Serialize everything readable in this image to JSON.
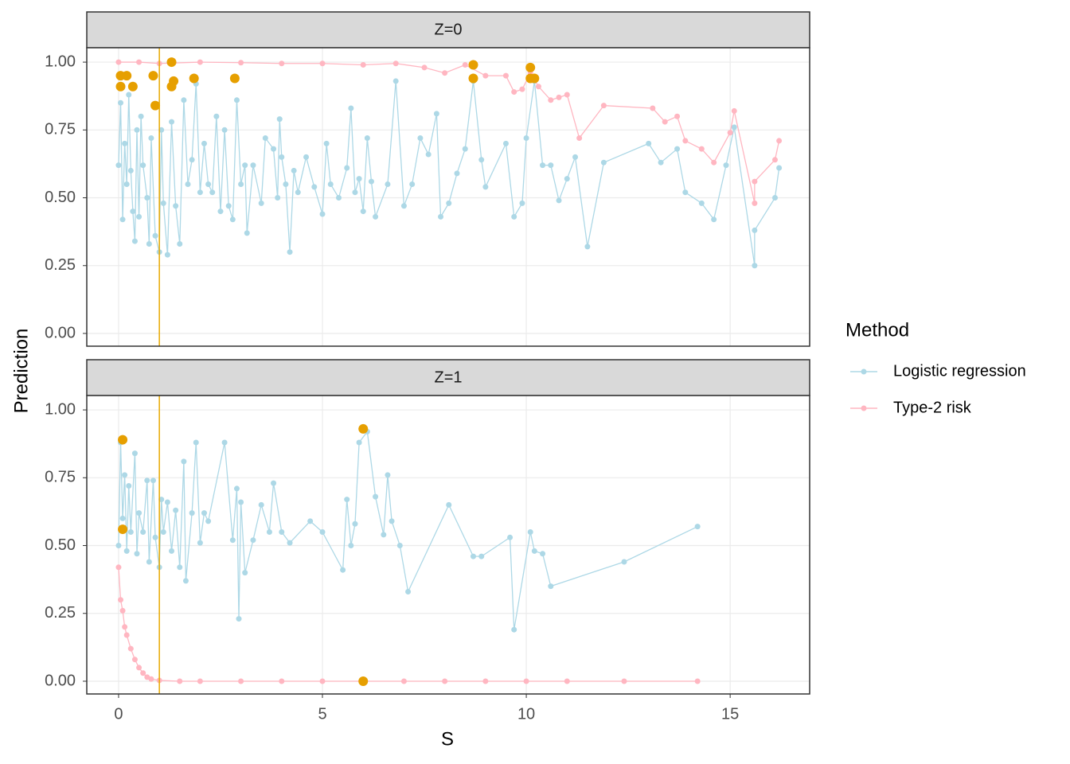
{
  "x_label": "S",
  "y_label": "Prediction",
  "legend_title": "Method",
  "chart_data": [
    {
      "type": "line",
      "title": "Z=0",
      "xlim": [
        -0.78,
        16.95
      ],
      "ylim": [
        -0.047,
        1.053
      ],
      "xticks": [
        0,
        5,
        10,
        15
      ],
      "yticks": [
        {
          "value": 0,
          "label": "0.00"
        },
        {
          "value": 0.25,
          "label": "0.25"
        },
        {
          "value": 0.5,
          "label": "0.50"
        },
        {
          "value": 0.75,
          "label": "0.75"
        },
        {
          "value": 1,
          "label": "1.00"
        }
      ],
      "grid": true,
      "vline": 1,
      "vline_color": "#e8a800",
      "series": [
        {
          "name": "Logistic regression",
          "color": "#add8e6",
          "x": [
            0.0,
            0.05,
            0.1,
            0.15,
            0.2,
            0.25,
            0.3,
            0.35,
            0.4,
            0.45,
            0.5,
            0.55,
            0.6,
            0.7,
            0.75,
            0.8,
            0.9,
            1.0,
            1.05,
            1.1,
            1.2,
            1.3,
            1.4,
            1.5,
            1.6,
            1.7,
            1.8,
            1.9,
            2.0,
            2.1,
            2.2,
            2.3,
            2.4,
            2.5,
            2.6,
            2.7,
            2.8,
            2.9,
            3.0,
            3.1,
            3.15,
            3.3,
            3.5,
            3.6,
            3.8,
            3.9,
            3.95,
            4.0,
            4.1,
            4.2,
            4.3,
            4.4,
            4.6,
            4.8,
            5.0,
            5.1,
            5.2,
            5.4,
            5.6,
            5.7,
            5.8,
            5.9,
            6.0,
            6.1,
            6.2,
            6.3,
            6.6,
            6.8,
            7.0,
            7.2,
            7.4,
            7.6,
            7.8,
            7.9,
            8.1,
            8.3,
            8.5,
            8.7,
            8.9,
            9.0,
            9.5,
            9.7,
            9.9,
            10.0,
            10.2,
            10.4,
            10.6,
            10.8,
            11.0,
            11.2,
            11.5,
            11.9,
            13.0,
            13.3,
            13.7,
            13.9,
            14.3,
            14.6,
            14.9,
            15.1,
            15.6,
            15.6,
            16.1,
            16.2
          ],
          "values": [
            0.62,
            0.85,
            0.42,
            0.7,
            0.55,
            0.88,
            0.6,
            0.45,
            0.34,
            0.75,
            0.43,
            0.8,
            0.62,
            0.5,
            0.33,
            0.72,
            0.36,
            0.3,
            0.75,
            0.48,
            0.29,
            0.78,
            0.47,
            0.33,
            0.86,
            0.55,
            0.64,
            0.92,
            0.52,
            0.7,
            0.55,
            0.52,
            0.8,
            0.45,
            0.75,
            0.47,
            0.42,
            0.86,
            0.55,
            0.62,
            0.37,
            0.62,
            0.48,
            0.72,
            0.68,
            0.5,
            0.79,
            0.65,
            0.55,
            0.3,
            0.6,
            0.52,
            0.65,
            0.54,
            0.44,
            0.7,
            0.55,
            0.5,
            0.61,
            0.83,
            0.52,
            0.57,
            0.45,
            0.72,
            0.56,
            0.43,
            0.55,
            0.93,
            0.47,
            0.55,
            0.72,
            0.66,
            0.81,
            0.43,
            0.48,
            0.59,
            0.68,
            0.93,
            0.64,
            0.54,
            0.7,
            0.43,
            0.48,
            0.72,
            0.93,
            0.62,
            0.62,
            0.49,
            0.57,
            0.65,
            0.32,
            0.63,
            0.7,
            0.63,
            0.68,
            0.52,
            0.48,
            0.42,
            0.62,
            0.76,
            0.25,
            0.38,
            0.5,
            0.61
          ]
        },
        {
          "name": "Type-2 risk",
          "color": "#ffb6c1",
          "x": [
            0.0,
            0.5,
            1.0,
            2.0,
            3.0,
            4.0,
            5.0,
            6.0,
            6.8,
            7.5,
            8.0,
            8.5,
            9.0,
            9.5,
            9.7,
            9.9,
            10.1,
            10.3,
            10.6,
            10.8,
            11.0,
            11.3,
            11.9,
            13.1,
            13.4,
            13.7,
            13.9,
            14.3,
            14.6,
            15.0,
            15.1,
            15.6,
            15.6,
            16.1,
            16.2
          ],
          "values": [
            1.0,
            1.0,
            0.995,
            1.0,
            0.998,
            0.995,
            0.995,
            0.99,
            0.995,
            0.98,
            0.96,
            0.99,
            0.95,
            0.95,
            0.89,
            0.9,
            0.96,
            0.91,
            0.86,
            0.87,
            0.88,
            0.72,
            0.84,
            0.83,
            0.78,
            0.8,
            0.71,
            0.68,
            0.63,
            0.74,
            0.82,
            0.48,
            0.56,
            0.64,
            0.71
          ]
        }
      ],
      "highlight": {
        "color": "#e69f00",
        "x": [
          0.05,
          0.05,
          0.2,
          0.35,
          0.9,
          0.85,
          1.3,
          1.35,
          1.3,
          1.85,
          2.85,
          8.7,
          8.7,
          10.1,
          10.2,
          10.1
        ],
        "values": [
          0.91,
          0.95,
          0.95,
          0.91,
          0.84,
          0.95,
          1.0,
          0.93,
          0.91,
          0.94,
          0.94,
          0.99,
          0.94,
          0.98,
          0.94,
          0.94
        ]
      }
    },
    {
      "type": "line",
      "title": "Z=1",
      "xlim": [
        -0.78,
        16.95
      ],
      "ylim": [
        -0.047,
        1.053
      ],
      "xticks": [
        0,
        5,
        10,
        15
      ],
      "yticks": [
        {
          "value": 0,
          "label": "0.00"
        },
        {
          "value": 0.25,
          "label": "0.25"
        },
        {
          "value": 0.5,
          "label": "0.50"
        },
        {
          "value": 0.75,
          "label": "0.75"
        },
        {
          "value": 1,
          "label": "1.00"
        }
      ],
      "grid": true,
      "vline": 1,
      "vline_color": "#e8a800",
      "series": [
        {
          "name": "Logistic regression",
          "color": "#add8e6",
          "x": [
            0.0,
            0.05,
            0.1,
            0.15,
            0.2,
            0.25,
            0.3,
            0.4,
            0.45,
            0.5,
            0.6,
            0.7,
            0.75,
            0.85,
            0.9,
            1.0,
            1.05,
            1.1,
            1.2,
            1.3,
            1.4,
            1.5,
            1.6,
            1.65,
            1.8,
            1.9,
            2.0,
            2.1,
            2.2,
            2.6,
            2.8,
            2.9,
            2.95,
            3.0,
            3.1,
            3.3,
            3.5,
            3.7,
            3.8,
            4.0,
            4.2,
            4.7,
            5.0,
            5.5,
            5.6,
            5.7,
            5.8,
            5.9,
            6.1,
            6.3,
            6.5,
            6.6,
            6.7,
            6.9,
            7.1,
            8.1,
            8.7,
            8.9,
            9.6,
            9.7,
            10.1,
            10.2,
            10.4,
            10.6,
            12.4,
            14.2
          ],
          "values": [
            0.5,
            0.88,
            0.6,
            0.76,
            0.48,
            0.72,
            0.55,
            0.84,
            0.47,
            0.62,
            0.55,
            0.74,
            0.44,
            0.74,
            0.53,
            0.42,
            0.67,
            0.55,
            0.66,
            0.48,
            0.63,
            0.42,
            0.81,
            0.37,
            0.62,
            0.88,
            0.51,
            0.62,
            0.59,
            0.88,
            0.52,
            0.71,
            0.23,
            0.66,
            0.4,
            0.52,
            0.65,
            0.55,
            0.73,
            0.55,
            0.51,
            0.59,
            0.55,
            0.41,
            0.67,
            0.5,
            0.58,
            0.88,
            0.92,
            0.68,
            0.54,
            0.76,
            0.59,
            0.5,
            0.33,
            0.65,
            0.46,
            0.46,
            0.53,
            0.19,
            0.55,
            0.48,
            0.47,
            0.35,
            0.44,
            0.57
          ]
        },
        {
          "name": "Type-2 risk",
          "color": "#ffb6c1",
          "x": [
            0.0,
            0.05,
            0.1,
            0.15,
            0.2,
            0.3,
            0.4,
            0.5,
            0.6,
            0.7,
            0.8,
            1.0,
            1.5,
            2.0,
            3.0,
            4.0,
            5.0,
            6.0,
            7.0,
            8.0,
            9.0,
            10.0,
            11.0,
            12.4,
            14.2
          ],
          "values": [
            0.42,
            0.3,
            0.26,
            0.2,
            0.17,
            0.12,
            0.08,
            0.05,
            0.03,
            0.015,
            0.008,
            0.003,
            0,
            0,
            0,
            0,
            0,
            0,
            0,
            0,
            0,
            0,
            0,
            0,
            0
          ]
        }
      ],
      "highlight": {
        "color": "#e69f00",
        "x": [
          0.1,
          0.1,
          6.0,
          6.0
        ],
        "values": [
          0.89,
          0.56,
          0.93,
          0
        ]
      }
    }
  ]
}
